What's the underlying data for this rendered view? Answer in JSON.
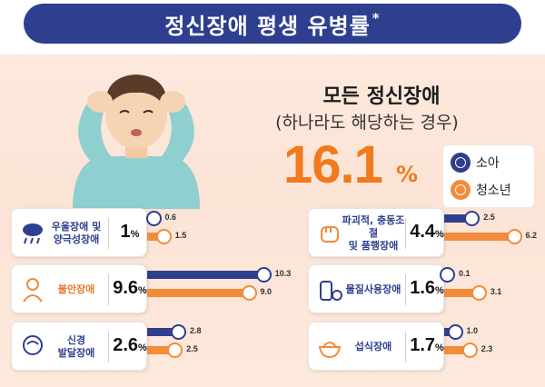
{
  "title": "정신장애 평생 유병률",
  "title_mark": "*",
  "headline": {
    "title": "모든 정신장애",
    "subtitle": "(하나라도 해당하는 경우)",
    "value": "16.1",
    "unit": "%"
  },
  "legend": [
    {
      "name": "소아",
      "color": "#2e3f8f"
    },
    {
      "name": "청소년",
      "color": "#f28b3a"
    }
  ],
  "chart_data": {
    "type": "bar",
    "unit": "%",
    "series": [
      {
        "name": "소아",
        "color": "#2e3f8f"
      },
      {
        "name": "청소년",
        "color": "#f28b3a"
      }
    ],
    "categories": [
      {
        "label": "우울장애 및\n양극성장애",
        "total": "1",
        "child": 0.6,
        "teen": 1.5,
        "icon": "rain-cloud-icon"
      },
      {
        "label": "불안장애",
        "total": "9.6",
        "child": 10.3,
        "teen": 9.0,
        "icon": "anxious-person-icon"
      },
      {
        "label": "신경\n발달장애",
        "total": "2.6",
        "child": 2.8,
        "teen": 2.5,
        "icon": "brain-head-icon"
      },
      {
        "label": "파괴적, 충동조절\n및 품행장애",
        "total": "4.4",
        "child": 2.5,
        "teen": 6.2,
        "icon": "fist-icon"
      },
      {
        "label": "물질사용장애",
        "total": "1.6",
        "child": 0.1,
        "teen": 3.1,
        "icon": "pills-icon"
      },
      {
        "label": "섭식장애",
        "total": "1.7",
        "child": 1.0,
        "teen": 2.3,
        "icon": "rice-bowl-icon"
      }
    ],
    "labels": {
      "child": [
        "0.6",
        "10.3",
        "2.8",
        "2.5",
        "0.1",
        "1.0"
      ],
      "teen": [
        "1.5",
        "9.0",
        "2.5",
        "6.2",
        "3.1",
        "2.3"
      ]
    }
  }
}
